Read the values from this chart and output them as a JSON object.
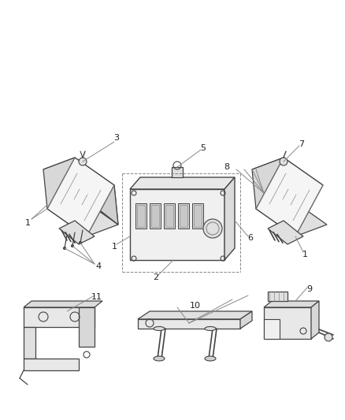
{
  "bg_color": "#ffffff",
  "line_color": "#444444",
  "gray_color": "#888888",
  "light_gray": "#bbbbbb",
  "text_color": "#222222",
  "figsize": [
    4.38,
    5.33
  ],
  "dpi": 100
}
